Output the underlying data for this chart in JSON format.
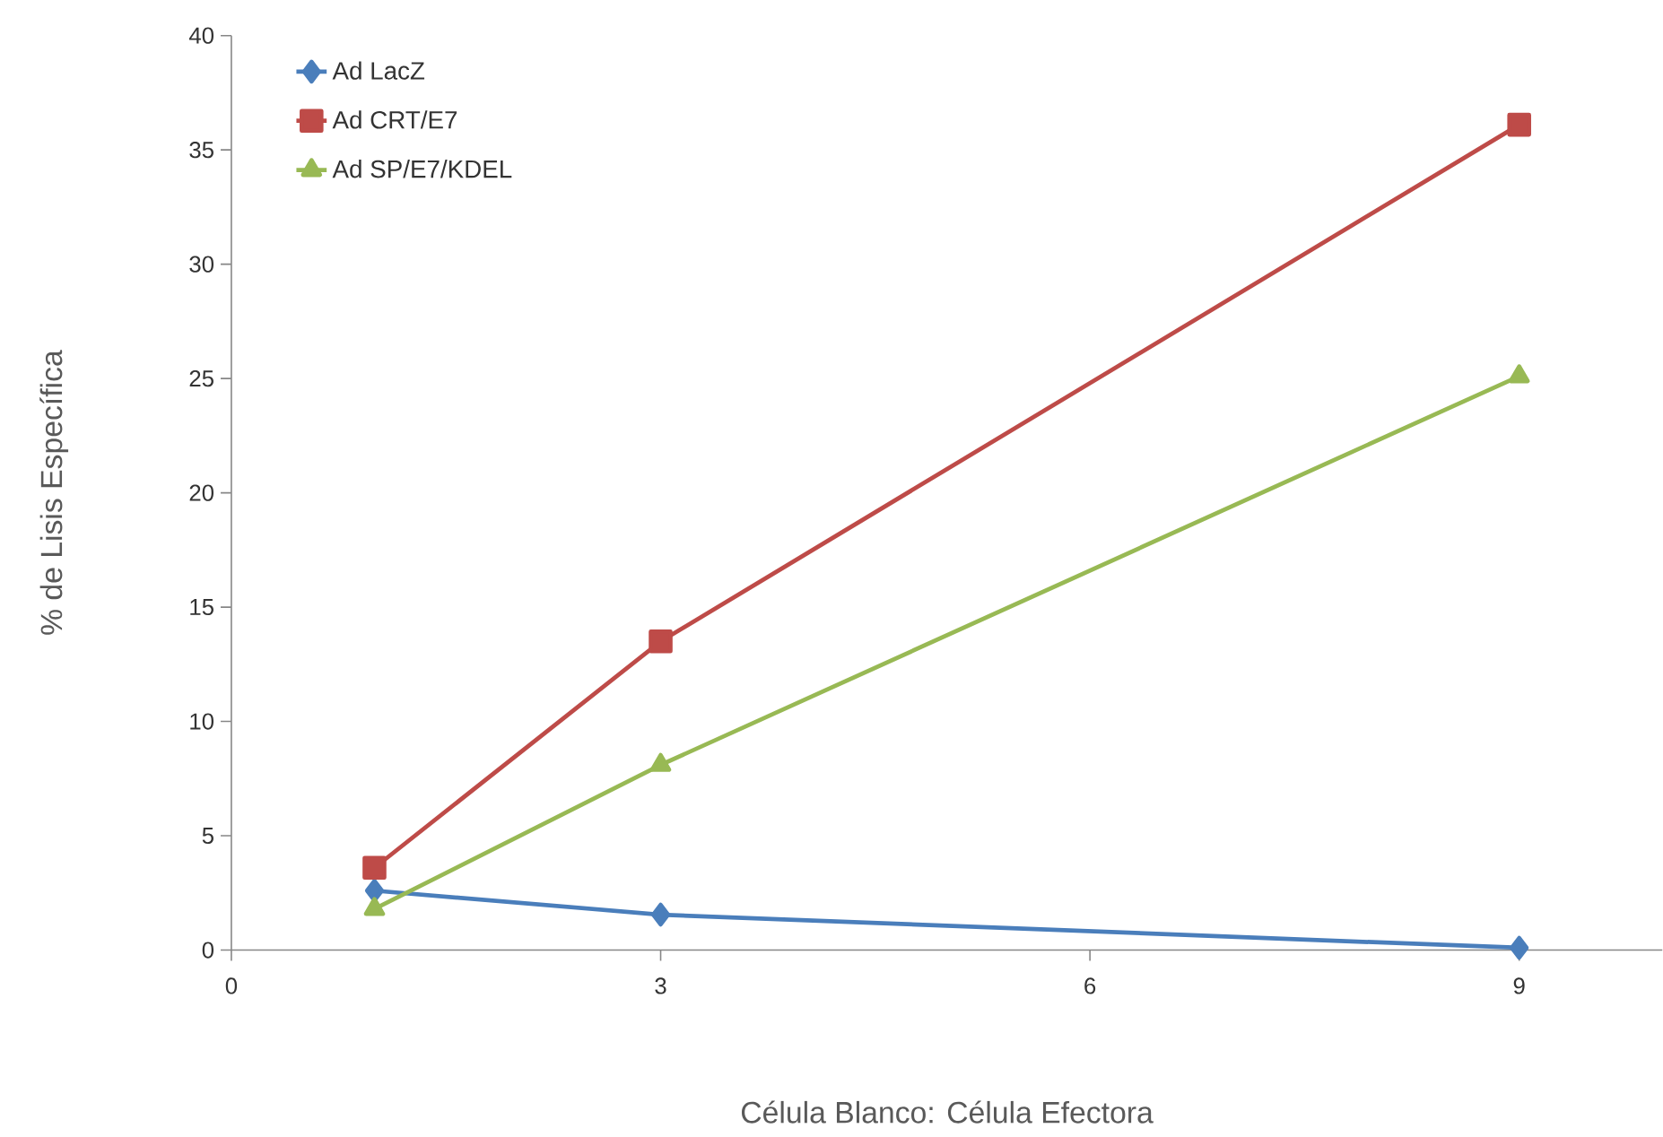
{
  "chart_data": {
    "type": "line",
    "xlabel": "Célula Blanco: Célula Efectora",
    "ylabel": "% de Lisis Específica",
    "x": [
      1,
      3,
      9
    ],
    "series": [
      {
        "name": "Ad LacZ",
        "color": "#4a7ebb",
        "marker": "diamond",
        "values": [
          2.6,
          1.55,
          0.1
        ]
      },
      {
        "name": "Ad CRT/E7",
        "color": "#be4b48",
        "marker": "square",
        "values": [
          3.6,
          13.5,
          36.1
        ]
      },
      {
        "name": "Ad SP/E7/KDEL",
        "color": "#98b954",
        "marker": "triangle",
        "values": [
          1.8,
          8.1,
          25.1
        ]
      }
    ],
    "xlim": [
      0,
      10
    ],
    "xticks": [
      0,
      3,
      6,
      9
    ],
    "ylim": [
      0,
      40
    ],
    "yticks": [
      0,
      5,
      10,
      15,
      20,
      25,
      30,
      35,
      40
    ],
    "grid": false,
    "legend": "top left",
    "line_style": "solid"
  }
}
